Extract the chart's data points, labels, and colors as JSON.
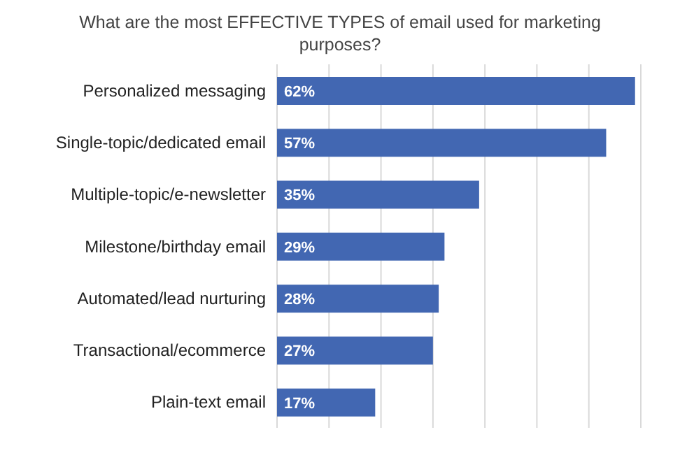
{
  "chart_data": {
    "type": "bar",
    "orientation": "horizontal",
    "title": "What are the most EFFECTIVE TYPES of email used for marketing purposes?",
    "categories": [
      "Personalized messaging",
      "Single-topic/dedicated email",
      "Multiple-topic/e-newsletter",
      "Milestone/birthday email",
      "Automated/lead nurturing",
      "Transactional/ecommerce",
      "Plain-text email"
    ],
    "values": [
      62,
      57,
      35,
      29,
      28,
      27,
      17
    ],
    "value_labels": [
      "62%",
      "57%",
      "35%",
      "29%",
      "28%",
      "27%",
      "17%"
    ],
    "color": "#4267b2",
    "grid": "x",
    "tick_labels": "y"
  }
}
